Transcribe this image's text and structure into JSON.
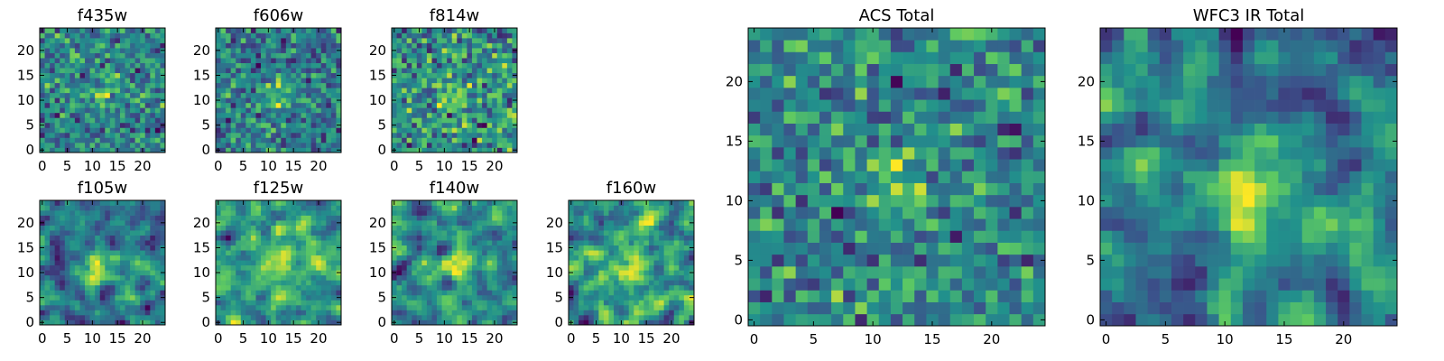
{
  "colormap": [
    "#440154",
    "#3b528b",
    "#21918c",
    "#5ec962",
    "#fde725"
  ],
  "chart_data": [
    {
      "type": "heatmap",
      "title": "f435w",
      "grid_size": 25,
      "xticks": [
        0,
        5,
        10,
        15,
        20
      ],
      "yticks": [
        0,
        5,
        10,
        15,
        20
      ],
      "xlim": [
        -0.5,
        24.5
      ],
      "ylim": [
        -0.5,
        24.5
      ],
      "source_sigma": 2.0,
      "source_amplitude": 0.55,
      "noise_level": 0.55,
      "blur": 0,
      "seed": 11
    },
    {
      "type": "heatmap",
      "title": "f606w",
      "grid_size": 25,
      "xticks": [
        0,
        5,
        10,
        15,
        20
      ],
      "yticks": [
        0,
        5,
        10,
        15,
        20
      ],
      "xlim": [
        -0.5,
        24.5
      ],
      "ylim": [
        -0.5,
        24.5
      ],
      "source_sigma": 1.8,
      "source_amplitude": 0.5,
      "noise_level": 0.5,
      "blur": 0,
      "seed": 23
    },
    {
      "type": "heatmap",
      "title": "f814w",
      "grid_size": 25,
      "xticks": [
        0,
        5,
        10,
        15,
        20
      ],
      "yticks": [
        0,
        5,
        10,
        15,
        20
      ],
      "xlim": [
        -0.5,
        24.5
      ],
      "ylim": [
        -0.5,
        24.5
      ],
      "source_sigma": 1.8,
      "source_amplitude": 0.45,
      "noise_level": 0.55,
      "blur": 0,
      "seed": 37
    },
    {
      "type": "heatmap",
      "title": "f105w",
      "grid_size": 25,
      "xticks": [
        0,
        5,
        10,
        15,
        20
      ],
      "yticks": [
        0,
        5,
        10,
        15,
        20
      ],
      "xlim": [
        -0.5,
        24.5
      ],
      "ylim": [
        -0.5,
        24.5
      ],
      "source_sigma": 2.5,
      "source_amplitude": 0.6,
      "noise_level": 0.65,
      "blur": 1,
      "seed": 41
    },
    {
      "type": "heatmap",
      "title": "f125w",
      "grid_size": 25,
      "xticks": [
        0,
        5,
        10,
        15,
        20
      ],
      "yticks": [
        0,
        5,
        10,
        15,
        20
      ],
      "xlim": [
        -0.5,
        24.5
      ],
      "ylim": [
        -0.5,
        24.5
      ],
      "source_sigma": 2.5,
      "source_amplitude": 0.5,
      "noise_level": 0.7,
      "blur": 1,
      "seed": 53
    },
    {
      "type": "heatmap",
      "title": "f140w",
      "grid_size": 25,
      "xticks": [
        0,
        5,
        10,
        15,
        20
      ],
      "yticks": [
        0,
        5,
        10,
        15,
        20
      ],
      "xlim": [
        -0.5,
        24.5
      ],
      "ylim": [
        -0.5,
        24.5
      ],
      "source_sigma": 2.5,
      "source_amplitude": 0.5,
      "noise_level": 0.7,
      "blur": 1,
      "seed": 67
    },
    {
      "type": "heatmap",
      "title": "f160w",
      "grid_size": 25,
      "xticks": [
        0,
        5,
        10,
        15,
        20
      ],
      "yticks": [
        0,
        5,
        10,
        15,
        20
      ],
      "xlim": [
        -0.5,
        24.5
      ],
      "ylim": [
        -0.5,
        24.5
      ],
      "source_sigma": 2.5,
      "source_amplitude": 0.5,
      "noise_level": 0.8,
      "blur": 1,
      "seed": 79
    },
    {
      "type": "heatmap",
      "title": "ACS Total",
      "grid_size": 25,
      "xticks": [
        0,
        5,
        10,
        15,
        20
      ],
      "yticks": [
        0,
        5,
        10,
        15,
        20
      ],
      "xlim": [
        -0.5,
        24.5
      ],
      "ylim": [
        -0.5,
        24.5
      ],
      "source_sigma": 1.5,
      "source_amplitude": 0.6,
      "noise_level": 0.5,
      "blur": 0,
      "seed": 97
    },
    {
      "type": "heatmap",
      "title": "WFC3 IR Total",
      "grid_size": 25,
      "xticks": [
        0,
        5,
        10,
        15,
        20
      ],
      "yticks": [
        0,
        5,
        10,
        15,
        20
      ],
      "xlim": [
        -0.5,
        24.5
      ],
      "ylim": [
        -0.5,
        24.5
      ],
      "source_sigma": 2.5,
      "source_amplitude": 0.65,
      "noise_level": 0.6,
      "blur": 1,
      "seed": 131
    }
  ]
}
